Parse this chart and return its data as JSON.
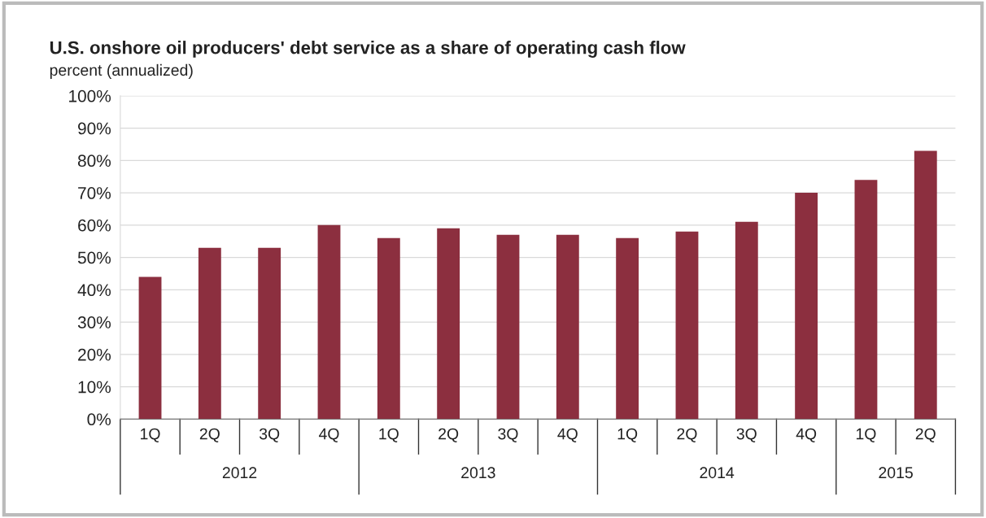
{
  "chart_data": {
    "type": "bar",
    "title": "U.S. onshore oil producers' debt service as a share of operating cash flow",
    "subtitle": "percent (annualized)",
    "categories": [
      "1Q",
      "2Q",
      "3Q",
      "4Q",
      "1Q",
      "2Q",
      "3Q",
      "4Q",
      "1Q",
      "2Q",
      "3Q",
      "4Q",
      "1Q",
      "2Q"
    ],
    "values": [
      44,
      53,
      53,
      60,
      56,
      59,
      57,
      57,
      56,
      58,
      61,
      70,
      74,
      83
    ],
    "color": "#8c2f3f",
    "annotations": [
      "2012",
      "2013",
      "2014",
      "2015"
    ],
    "ylim": [
      0,
      100
    ],
    "yticks": [
      {
        "value": 0,
        "label": "0%"
      },
      {
        "value": 10,
        "label": "10%"
      },
      {
        "value": 20,
        "label": "20%"
      },
      {
        "value": 30,
        "label": "30%"
      },
      {
        "value": 40,
        "label": "40%"
      },
      {
        "value": 50,
        "label": "50%"
      },
      {
        "value": 60,
        "label": "60%"
      },
      {
        "value": 70,
        "label": "70%"
      },
      {
        "value": 80,
        "label": "80%"
      },
      {
        "value": 90,
        "label": "90%"
      },
      {
        "value": 100,
        "label": "100%"
      }
    ],
    "grid": "y"
  }
}
